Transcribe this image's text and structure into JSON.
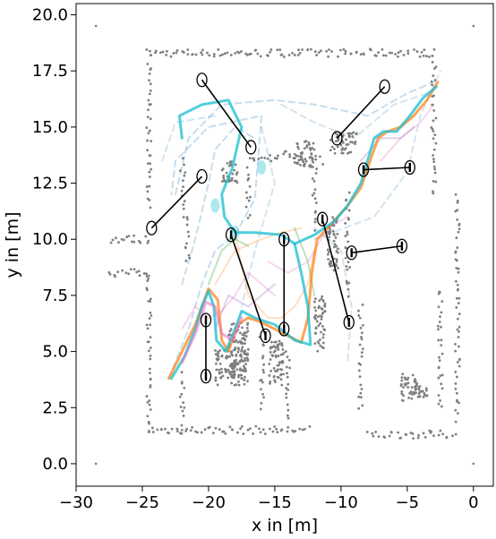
{
  "chart_data": {
    "type": "scatter",
    "title": "",
    "xlabel": "x in [m]",
    "ylabel": "y in [m]",
    "xlim": [
      -30,
      1.5
    ],
    "ylim": [
      -1.0,
      20.5
    ],
    "xticks": [
      -30,
      -25,
      -20,
      -15,
      -10,
      -5,
      0
    ],
    "yticks": [
      0.0,
      2.5,
      5.0,
      7.5,
      10.0,
      12.5,
      15.0,
      17.5,
      20.0
    ],
    "xtick_labels": [
      "−30",
      "−25",
      "−20",
      "−15",
      "−10",
      "−5",
      "0"
    ],
    "ytick_labels": [
      "0.0",
      "2.5",
      "5.0",
      "7.5",
      "10.0",
      "12.5",
      "15.0",
      "17.5",
      "20.0"
    ],
    "grid": false,
    "colors": {
      "map_points": "#7f7f7f",
      "trajectory_blue": "#1f77b4",
      "trajectory_orange": "#ff7f0e",
      "trajectory_green": "#2ca02c",
      "trajectory_pink": "#e377c2",
      "trajectory_purple": "#9467bd",
      "trajectory_cyan": "#17becf",
      "marker_ring": "#000000"
    },
    "corner_points": [
      [
        -28.5,
        19.5
      ],
      [
        0,
        19.5
      ],
      [
        -28.5,
        0
      ],
      [
        0,
        0
      ]
    ],
    "map_segments": [
      [
        [
          -24.5,
          18.3
        ],
        [
          -3,
          18.3
        ]
      ],
      [
        [
          -3,
          18.3
        ],
        [
          -3,
          12.0
        ]
      ],
      [
        [
          -24.5,
          18.3
        ],
        [
          -24.5,
          11.5
        ]
      ],
      [
        [
          -27.5,
          10.0
        ],
        [
          -24.5,
          10.0
        ]
      ],
      [
        [
          -27.5,
          8.5
        ],
        [
          -24.5,
          8.5
        ]
      ],
      [
        [
          -24.5,
          8.5
        ],
        [
          -24.5,
          1.5
        ]
      ],
      [
        [
          -24.5,
          1.5
        ],
        [
          -12.5,
          1.5
        ]
      ],
      [
        [
          -8.0,
          1.3
        ],
        [
          -1.5,
          1.3
        ]
      ],
      [
        [
          -1.2,
          12.0
        ],
        [
          -1.2,
          2.0
        ]
      ],
      [
        [
          -2.5,
          7.8
        ],
        [
          -2.5,
          2.5
        ]
      ],
      [
        [
          -22.0,
          13.5
        ],
        [
          -21.5,
          9.0
        ]
      ],
      [
        [
          -17.0,
          13.5
        ],
        [
          -14.0,
          13.8
        ]
      ],
      [
        [
          -14.0,
          13.8
        ],
        [
          -11.5,
          13.5
        ]
      ],
      [
        [
          -17.0,
          13.2
        ],
        [
          -17.0,
          11.0
        ]
      ],
      [
        [
          -12.0,
          13.5
        ],
        [
          -12.0,
          10.5
        ]
      ],
      [
        [
          -9.5,
          12.0
        ],
        [
          -9.5,
          7.5
        ]
      ],
      [
        [
          -8.5,
          7.0
        ],
        [
          -8.5,
          2.5
        ]
      ],
      [
        [
          -16.0,
          5.5
        ],
        [
          -16.0,
          2.5
        ]
      ],
      [
        [
          -14.0,
          5.0
        ],
        [
          -14.0,
          2.0
        ]
      ],
      [
        [
          -22.0,
          4.0
        ],
        [
          -22.0,
          1.6
        ]
      ]
    ],
    "map_blocks": [
      [
        -19.5,
        3.5,
        2.5,
        1.6
      ],
      [
        -18.5,
        3.8,
        1.5,
        2.5
      ],
      [
        -15.5,
        3.5,
        1.2,
        2.0
      ],
      [
        -12.0,
        5.0,
        0.8,
        2.5
      ],
      [
        -10.8,
        13.8,
        2.0,
        1.0
      ],
      [
        -13.5,
        13.2,
        1.5,
        1.2
      ],
      [
        -19.0,
        12.5,
        1.2,
        1.0
      ],
      [
        -11.0,
        8.5,
        0.8,
        2.5
      ],
      [
        -5.5,
        2.8,
        2.0,
        1.2
      ]
    ],
    "series": [
      {
        "color": "blue",
        "style": "dashed",
        "width": 2,
        "opacity": 0.25,
        "points": [
          [
            -23,
            3.8
          ],
          [
            -21.5,
            6.0
          ],
          [
            -20.5,
            8.0
          ],
          [
            -19.5,
            9.5
          ],
          [
            -18.0,
            10.2
          ],
          [
            -16.5,
            11.8
          ],
          [
            -16.0,
            15.5
          ],
          [
            -20.0,
            15.0
          ],
          [
            -22.5,
            13.5
          ],
          [
            -22.8,
            12.0
          ]
        ]
      },
      {
        "color": "blue",
        "style": "dashed",
        "width": 2,
        "opacity": 0.25,
        "points": [
          [
            -22.5,
            12.0
          ],
          [
            -21.5,
            14.5
          ],
          [
            -19.0,
            16.0
          ],
          [
            -15.0,
            16.2
          ],
          [
            -12.0,
            16.0
          ],
          [
            -8.0,
            15.5
          ],
          [
            -5.0,
            16.5
          ],
          [
            -3.0,
            17.0
          ]
        ]
      },
      {
        "color": "blue",
        "style": "dashed",
        "width": 2,
        "opacity": 0.25,
        "points": [
          [
            -22.0,
            8.0
          ],
          [
            -21.0,
            10.0
          ],
          [
            -20.0,
            12.5
          ],
          [
            -19.5,
            14.0
          ],
          [
            -18.0,
            15.0
          ],
          [
            -16.5,
            14.5
          ]
        ]
      },
      {
        "color": "blue",
        "style": "dashed",
        "width": 2,
        "opacity": 0.2,
        "points": [
          [
            -14.5,
            16.0
          ],
          [
            -12.0,
            15.2
          ],
          [
            -9.0,
            14.5
          ],
          [
            -6.0,
            16.0
          ],
          [
            -3.5,
            16.5
          ]
        ]
      },
      {
        "color": "blue",
        "style": "dashed",
        "width": 2,
        "opacity": 0.2,
        "points": [
          [
            -12.0,
            10.5
          ],
          [
            -10.0,
            9.5
          ],
          [
            -9.2,
            7.0
          ],
          [
            -9.5,
            4.5
          ]
        ]
      },
      {
        "color": "blue",
        "style": "dashed",
        "width": 2,
        "opacity": 0.2,
        "points": [
          [
            -16.0,
            15.0
          ],
          [
            -15.0,
            12.5
          ],
          [
            -16.5,
            9.5
          ],
          [
            -17.5,
            7.0
          ]
        ]
      },
      {
        "color": "blue",
        "style": "dashed",
        "width": 2,
        "opacity": 0.2,
        "points": [
          [
            -19.5,
            15.5
          ],
          [
            -22.5,
            15.2
          ],
          [
            -23.5,
            13.5
          ]
        ]
      },
      {
        "color": "blue",
        "style": "dashed",
        "width": 2,
        "opacity": 0.2,
        "points": [
          [
            -12.0,
            10.0
          ],
          [
            -7.5,
            11.0
          ],
          [
            -5.0,
            13.0
          ],
          [
            -4.0,
            15.5
          ],
          [
            -2.5,
            17.5
          ]
        ]
      },
      {
        "color": "orange",
        "style": "solid",
        "width": 2,
        "opacity": 0.25,
        "points": [
          [
            -18.0,
            10.2
          ],
          [
            -17.0,
            7.5
          ],
          [
            -15.5,
            6.5
          ],
          [
            -14.5,
            6.5
          ],
          [
            -13.5,
            7.0
          ],
          [
            -12.5,
            8.0
          ],
          [
            -12.0,
            9.5
          ]
        ]
      },
      {
        "color": "orange",
        "style": "solid",
        "width": 2,
        "opacity": 0.25,
        "points": [
          [
            -19.5,
            8.0
          ],
          [
            -18.0,
            9.5
          ],
          [
            -16.0,
            10.0
          ],
          [
            -14.5,
            10.3
          ],
          [
            -13.0,
            10.5
          ]
        ]
      },
      {
        "color": "pink",
        "style": "solid",
        "width": 2,
        "opacity": 0.3,
        "points": [
          [
            -22.0,
            6.0
          ],
          [
            -21.0,
            7.0
          ],
          [
            -20.0,
            6.5
          ],
          [
            -19.0,
            6.8
          ],
          [
            -18.0,
            7.5
          ],
          [
            -17.0,
            8.5
          ],
          [
            -16.0,
            8.0
          ],
          [
            -15.0,
            7.5
          ]
        ]
      },
      {
        "color": "pink",
        "style": "solid",
        "width": 2,
        "opacity": 0.3,
        "points": [
          [
            -15.5,
            9.0
          ],
          [
            -14.0,
            8.5
          ],
          [
            -12.5,
            9.0
          ],
          [
            -11.0,
            10.5
          ],
          [
            -9.5,
            11.0
          ]
        ]
      },
      {
        "color": "pink",
        "style": "solid",
        "width": 2,
        "opacity": 0.3,
        "points": [
          [
            -7.0,
            13.5
          ],
          [
            -5.5,
            14.5
          ],
          [
            -4.0,
            15.2
          ],
          [
            -3.0,
            16.0
          ]
        ]
      },
      {
        "color": "purple",
        "style": "solid",
        "width": 2,
        "opacity": 0.3,
        "points": [
          [
            -19.5,
            6.0
          ],
          [
            -18.5,
            7.5
          ],
          [
            -17.0,
            7.0
          ],
          [
            -16.0,
            7.5
          ],
          [
            -15.0,
            8.0
          ]
        ]
      },
      {
        "color": "purple",
        "style": "solid",
        "width": 2,
        "opacity": 0.3,
        "points": [
          [
            -8.5,
            13.5
          ],
          [
            -7.0,
            14.5
          ],
          [
            -5.5,
            14.5
          ],
          [
            -4.5,
            15.0
          ]
        ]
      },
      {
        "color": "green",
        "style": "solid",
        "width": 2,
        "opacity": 0.3,
        "points": [
          [
            -20.0,
            8.0
          ],
          [
            -19.0,
            9.5
          ],
          [
            -18.0,
            10.0
          ],
          [
            -17.0,
            9.7
          ]
        ]
      },
      {
        "color": "green",
        "style": "solid",
        "width": 2,
        "opacity": 0.3,
        "points": [
          [
            -13.5,
            10.5
          ],
          [
            -12.5,
            9.0
          ],
          [
            -12.0,
            7.5
          ]
        ]
      },
      {
        "color": "orange",
        "style": "solid",
        "width": 3,
        "opacity": 0.7,
        "points": [
          [
            -23.0,
            3.8
          ],
          [
            -22.0,
            5.0
          ],
          [
            -21.0,
            6.2
          ],
          [
            -20.0,
            7.8
          ],
          [
            -19.3,
            7.3
          ],
          [
            -19.0,
            5.5
          ],
          [
            -18.5,
            5.0
          ],
          [
            -17.8,
            6.2
          ],
          [
            -17.0,
            6.5
          ],
          [
            -16.0,
            6.3
          ],
          [
            -15.0,
            6.0
          ],
          [
            -14.0,
            5.7
          ],
          [
            -13.0,
            5.4
          ],
          [
            -12.5,
            6.5
          ],
          [
            -12.2,
            8.5
          ],
          [
            -11.8,
            10.0
          ],
          [
            -11.0,
            10.5
          ],
          [
            -9.5,
            11.5
          ],
          [
            -8.5,
            12.3
          ],
          [
            -7.8,
            13.5
          ],
          [
            -7.2,
            14.5
          ],
          [
            -6.5,
            14.8
          ],
          [
            -5.5,
            15.0
          ],
          [
            -4.5,
            15.5
          ],
          [
            -3.5,
            16.2
          ],
          [
            -2.7,
            17.0
          ]
        ]
      },
      {
        "color": "cyan",
        "style": "solid",
        "width": 3,
        "opacity": 0.75,
        "points": [
          [
            -22.8,
            3.8
          ],
          [
            -21.8,
            4.8
          ],
          [
            -21.0,
            6.0
          ],
          [
            -20.5,
            7.0
          ],
          [
            -20.0,
            7.7
          ],
          [
            -19.6,
            7.0
          ],
          [
            -19.4,
            5.5
          ],
          [
            -18.7,
            5.0
          ],
          [
            -18.0,
            6.0
          ],
          [
            -17.5,
            6.8
          ],
          [
            -16.5,
            6.5
          ],
          [
            -15.0,
            6.2
          ],
          [
            -13.5,
            5.5
          ],
          [
            -12.3,
            5.3
          ],
          [
            -12.5,
            7.0
          ],
          [
            -13.0,
            8.5
          ],
          [
            -13.5,
            9.8
          ],
          [
            -14.5,
            10.2
          ],
          [
            -16.5,
            10.3
          ],
          [
            -18.0,
            10.3
          ],
          [
            -18.8,
            11.0
          ],
          [
            -19.0,
            12.0
          ],
          [
            -18.2,
            13.2
          ],
          [
            -17.5,
            15.0
          ],
          [
            -18.5,
            16.2
          ],
          [
            -20.5,
            16.0
          ],
          [
            -22.2,
            15.5
          ],
          [
            -22.0,
            14.5
          ]
        ]
      },
      {
        "color": "cyan",
        "style": "solid",
        "width": 3,
        "opacity": 0.75,
        "points": [
          [
            -13.5,
            9.8
          ],
          [
            -12.0,
            10.2
          ],
          [
            -10.5,
            10.8
          ],
          [
            -9.5,
            11.5
          ],
          [
            -8.5,
            12.5
          ],
          [
            -8.0,
            13.5
          ],
          [
            -7.5,
            14.5
          ],
          [
            -6.8,
            14.8
          ],
          [
            -5.8,
            14.8
          ],
          [
            -4.8,
            15.5
          ],
          [
            -3.8,
            16.3
          ],
          [
            -2.8,
            16.8
          ]
        ]
      },
      {
        "color": "pink",
        "style": "solid",
        "width": 3,
        "opacity": 0.6,
        "points": [
          [
            -22.0,
            4.5
          ],
          [
            -21.0,
            5.8
          ],
          [
            -20.2,
            7.2
          ],
          [
            -19.5,
            7.0
          ],
          [
            -19.0,
            5.8
          ],
          [
            -18.2,
            5.5
          ],
          [
            -17.5,
            6.5
          ]
        ]
      }
    ],
    "cyan_blobs": [
      [
        -16.0,
        13.2
      ],
      [
        -18.0,
        10.3
      ],
      [
        -19.5,
        11.5
      ]
    ],
    "markers": [
      {
        "start": [
          -20.5,
          17.1
        ],
        "end": [
          -16.8,
          14.1
        ],
        "kind": "open"
      },
      {
        "start": [
          -20.5,
          12.8
        ],
        "end": [
          -24.3,
          10.5
        ],
        "kind": "open"
      },
      {
        "start": [
          -10.3,
          14.5
        ],
        "end": [
          -6.7,
          16.8
        ],
        "kind": "open"
      },
      {
        "start": [
          -8.3,
          13.1
        ],
        "end": [
          -4.8,
          13.2
        ],
        "kind": "filled"
      },
      {
        "start": [
          -18.3,
          10.2
        ],
        "end": [
          -15.7,
          5.7
        ],
        "kind": "filled"
      },
      {
        "start": [
          -14.3,
          10.0
        ],
        "end": [
          -14.3,
          6.0
        ],
        "kind": "filled"
      },
      {
        "start": [
          -11.4,
          10.9
        ],
        "end": [
          -9.4,
          6.3
        ],
        "kind": "filled"
      },
      {
        "start": [
          -9.2,
          9.4
        ],
        "end": [
          -5.4,
          9.7
        ],
        "kind": "filled"
      },
      {
        "start": [
          -20.2,
          6.4
        ],
        "end": [
          -20.2,
          3.9
        ],
        "kind": "filled"
      }
    ]
  }
}
